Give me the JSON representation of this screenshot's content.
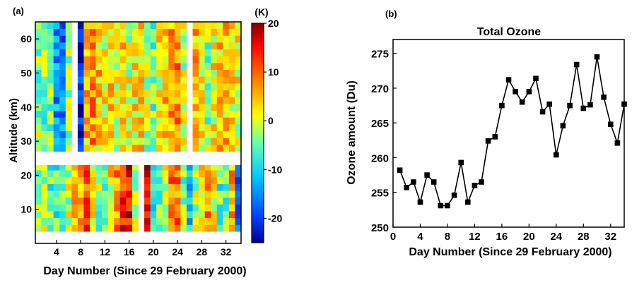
{
  "chart_data": [
    {
      "panel_label": "(a)",
      "type": "heatmap",
      "xlabel": "Day Number (Since 29 February 2000)",
      "ylabel": "Altitude (km)",
      "xlim": [
        0.5,
        34.5
      ],
      "ylim": [
        0,
        65
      ],
      "x_ticks": [
        4,
        8,
        12,
        16,
        20,
        24,
        28,
        32
      ],
      "y_ticks": [
        10,
        20,
        30,
        40,
        50,
        60
      ],
      "colorbar": {
        "unit": "(K)",
        "range": [
          -25,
          20
        ],
        "ticks": [
          20,
          10,
          0,
          -10,
          -20
        ],
        "tick_labels": [
          "20",
          "10",
          "0",
          "-10",
          "-20"
        ],
        "colors": [
          "#00008f",
          "#0040ff",
          "#00c8ff",
          "#60ffb0",
          "#ffff00",
          "#ff8000",
          "#ff0000",
          "#800000"
        ]
      },
      "upper_layer_km": [
        27,
        65
      ],
      "lower_layer_km": [
        3.5,
        23
      ],
      "upper_missing_days": [
        7,
        26
      ],
      "lower_missing_days": [
        18
      ],
      "upper_profile_days": [
        1,
        2,
        3,
        4,
        5,
        6,
        8,
        9,
        10,
        11,
        12,
        13,
        14,
        15,
        16,
        17,
        18,
        19,
        20,
        21,
        22,
        23,
        24,
        25,
        27,
        28,
        29,
        30,
        31,
        32,
        33,
        34
      ],
      "lower_profile_days": [
        1,
        2,
        3,
        4,
        5,
        6,
        7,
        8,
        9,
        10,
        11,
        12,
        13,
        14,
        15,
        16,
        17,
        19,
        20,
        21,
        22,
        23,
        24,
        25,
        26,
        27,
        28,
        29,
        30,
        31,
        32,
        33,
        34
      ],
      "upper_day_mean_K": [
        -3,
        -4,
        -5,
        -14,
        -16,
        -2,
        -22,
        5,
        7,
        4,
        2,
        3,
        0,
        4,
        0,
        2,
        3,
        -2,
        -4,
        1,
        4,
        6,
        8,
        -1,
        5,
        1,
        -3,
        2,
        4,
        5,
        2,
        1
      ],
      "lower_day_mean_K": [
        -3,
        -2,
        -6,
        -6,
        -4,
        -1,
        5,
        6,
        11,
        3,
        -3,
        -5,
        2,
        7,
        13,
        15,
        -1,
        17,
        -10,
        -5,
        1,
        10,
        9,
        -4,
        -12,
        -1,
        4,
        8,
        2,
        -6,
        -4,
        6,
        -18
      ]
    },
    {
      "panel_label": "(b)",
      "type": "line",
      "title": "Total Ozone",
      "xlabel": "Day Number (Since 29 February 2000)",
      "ylabel": "Ozone amount (Du)",
      "xlim": [
        0,
        34
      ],
      "ylim": [
        250,
        277
      ],
      "x_ticks": [
        0,
        4,
        8,
        12,
        16,
        20,
        24,
        28,
        32
      ],
      "y_ticks": [
        250,
        255,
        260,
        265,
        270,
        275
      ],
      "marker": "square",
      "x": [
        1,
        2,
        3,
        4,
        5,
        6,
        7,
        8,
        9,
        10,
        11,
        12,
        13,
        14,
        15,
        16,
        17,
        18,
        19,
        20,
        21,
        22,
        23,
        24,
        25,
        26,
        27,
        28,
        29,
        30,
        31,
        32,
        33,
        34
      ],
      "values": [
        258.2,
        255.7,
        256.5,
        253.6,
        257.5,
        256.5,
        253.1,
        253.1,
        254.6,
        259.3,
        253.6,
        256.0,
        256.5,
        262.4,
        263.0,
        267.5,
        271.2,
        269.5,
        268.0,
        269.5,
        271.4,
        266.6,
        267.7,
        260.4,
        264.6,
        267.5,
        273.4,
        267.1,
        267.6,
        274.5,
        268.7,
        264.8,
        262.1,
        267.7
      ]
    }
  ]
}
